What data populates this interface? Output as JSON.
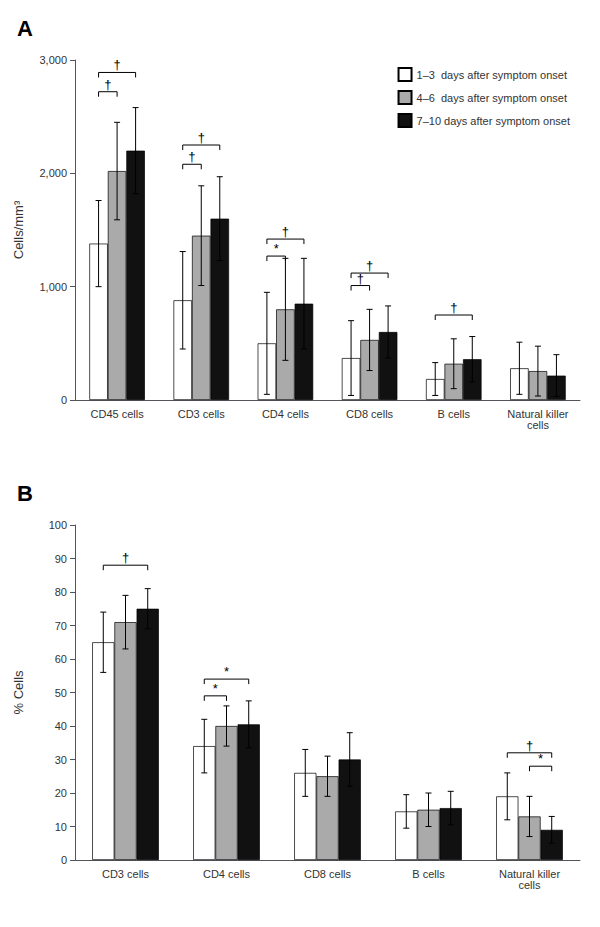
{
  "chart_data": [
    {
      "type": "bar",
      "title": "A",
      "categories": [
        "CD45 cells",
        "CD3 cells",
        "CD4 cells",
        "CD8 cells",
        "B cells",
        "Natural killer\ncells"
      ],
      "series": [
        {
          "name": "1–3  days after symptom onset",
          "color": "#ffffff",
          "values": [
            1380,
            880,
            500,
            370,
            185,
            280
          ],
          "errors": [
            380,
            430,
            450,
            330,
            145,
            230
          ]
        },
        {
          "name": "4–6  days after symptom onset",
          "color": "#aaaaaa",
          "values": [
            2020,
            1450,
            800,
            530,
            320,
            255
          ],
          "errors": [
            430,
            440,
            450,
            270,
            220,
            220
          ]
        },
        {
          "name": "7–10 days after symptom onset",
          "color": "#111111",
          "values": [
            2200,
            1600,
            850,
            600,
            360,
            215
          ],
          "errors": [
            380,
            370,
            400,
            230,
            200,
            185
          ]
        }
      ],
      "ylabel": "Cells/mm³",
      "ylim": [
        0,
        3000
      ],
      "yticks": [
        0,
        {
          "value": 1000,
          "label": "1,000"
        },
        {
          "value": 2000,
          "label": "2,000"
        },
        {
          "value": 3000,
          "label": "3,000"
        }
      ],
      "grid": false,
      "legend": "upper right",
      "annotations": [
        {
          "text": "†",
          "category": "CD45 cells",
          "series": [
            0,
            1
          ],
          "y": 2720
        },
        {
          "text": "†",
          "category": "CD45 cells",
          "series": [
            0,
            2
          ],
          "y": 2890
        },
        {
          "text": "†",
          "category": "CD3 cells",
          "series": [
            0,
            1
          ],
          "y": 2080
        },
        {
          "text": "†",
          "category": "CD3 cells",
          "series": [
            0,
            2
          ],
          "y": 2250
        },
        {
          "text": "*",
          "category": "CD4 cells",
          "series": [
            0,
            1
          ],
          "y": 1270
        },
        {
          "text": "†",
          "category": "CD4 cells",
          "series": [
            0,
            2
          ],
          "y": 1420
        },
        {
          "text": "†",
          "category": "CD8 cells",
          "series": [
            0,
            1
          ],
          "y": 1010
        },
        {
          "text": "†",
          "category": "CD8 cells",
          "series": [
            0,
            2
          ],
          "y": 1120
        },
        {
          "text": "†",
          "category": "B cells",
          "series": [
            0,
            2
          ],
          "y": 750
        }
      ]
    },
    {
      "type": "bar",
      "title": "B",
      "categories": [
        "CD3 cells",
        "CD4 cells",
        "CD8 cells",
        "B cells",
        "Natural killer\ncells"
      ],
      "series": [
        {
          "color": "#ffffff",
          "values": [
            65,
            34,
            26,
            14.5,
            19
          ],
          "errors": [
            9,
            8,
            7,
            5,
            7
          ]
        },
        {
          "color": "#aaaaaa",
          "values": [
            71,
            40,
            25,
            15,
            13
          ],
          "errors": [
            8,
            6,
            6,
            5,
            6
          ]
        },
        {
          "color": "#111111",
          "values": [
            75,
            40.5,
            30,
            15.5,
            9
          ],
          "errors": [
            6,
            7,
            8,
            5,
            4
          ]
        }
      ],
      "ylabel": "% Cells",
      "ylim": [
        0,
        100
      ],
      "yticks": [
        0,
        10,
        20,
        30,
        40,
        50,
        60,
        70,
        80,
        90,
        100
      ],
      "grid": false,
      "annotations": [
        {
          "text": "†",
          "category": "CD3 cells",
          "series": [
            0,
            2
          ],
          "y": 88
        },
        {
          "text": "*",
          "category": "CD4 cells",
          "series": [
            0,
            1
          ],
          "y": 49
        },
        {
          "text": "*",
          "category": "CD4 cells",
          "series": [
            0,
            2
          ],
          "y": 54
        },
        {
          "text": "*",
          "category": "Natural killer\ncells",
          "series": [
            1,
            2
          ],
          "y": 28
        },
        {
          "text": "†",
          "category": "Natural killer\ncells",
          "series": [
            0,
            2
          ],
          "y": 32
        }
      ]
    }
  ]
}
